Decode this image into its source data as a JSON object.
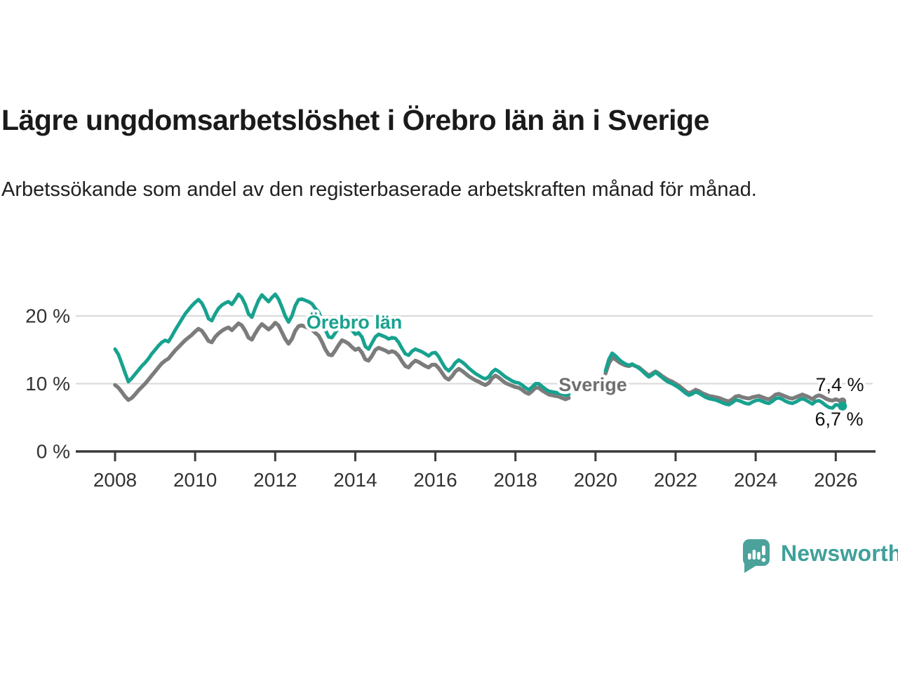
{
  "header": {
    "title": "Lägre ungdomsarbetslöshet i Örebro län än i Sverige",
    "subtitle": "Arbetssökande som andel av den registerbaserade arbetskraften månad för månad."
  },
  "footer": {
    "brand": "Newsworthy",
    "brand_color": "#40a09a"
  },
  "chart_data": {
    "type": "line",
    "title": "Lägre ungdomsarbetslöshet i Örebro län än i Sverige",
    "subtitle": "Arbetssökande som andel av den registerbaserade arbetskraften månad för månad.",
    "unit": "%",
    "frequency": "monthly",
    "x_start": "2008-01",
    "x_end": "2026-03",
    "data_gap": "2019-06 to 2020-03",
    "ylim": [
      0,
      24.5
    ],
    "yticks": [
      {
        "value": 0,
        "label": "0 %"
      },
      {
        "value": 10,
        "label": "10 %"
      },
      {
        "value": 20,
        "label": "20 %"
      }
    ],
    "xticks": [
      2008,
      2010,
      2012,
      2014,
      2016,
      2018,
      2020,
      2022,
      2024,
      2026
    ],
    "grid": "horizontal-only",
    "legend_position": "inline-labels",
    "series": [
      {
        "name": "Sverige",
        "color": "#7c7c7c",
        "end_label": "7,4 %",
        "values": [
          9.8,
          9.4,
          8.8,
          8.1,
          7.6,
          7.9,
          8.4,
          9.0,
          9.5,
          10.0,
          10.6,
          11.2,
          11.8,
          12.4,
          13.0,
          13.4,
          13.7,
          14.3,
          14.9,
          15.4,
          15.9,
          16.4,
          16.8,
          17.2,
          17.7,
          18.1,
          17.8,
          17.1,
          16.3,
          16.1,
          16.9,
          17.4,
          17.8,
          18.1,
          18.3,
          17.9,
          18.4,
          18.9,
          18.6,
          17.8,
          16.8,
          16.5,
          17.4,
          18.2,
          18.8,
          18.4,
          18.0,
          18.4,
          19.0,
          18.6,
          17.6,
          16.6,
          15.9,
          16.6,
          17.8,
          18.5,
          18.6,
          18.4,
          18.2,
          18.0,
          17.5,
          17.1,
          16.2,
          15.1,
          14.3,
          14.2,
          14.9,
          15.7,
          16.4,
          16.2,
          15.9,
          15.4,
          15.0,
          15.2,
          14.6,
          13.6,
          13.4,
          14.1,
          15.0,
          15.3,
          15.1,
          14.9,
          14.6,
          14.8,
          14.6,
          14.1,
          13.3,
          12.6,
          12.4,
          13.0,
          13.4,
          13.2,
          12.9,
          12.6,
          12.4,
          12.8,
          12.8,
          12.3,
          11.6,
          10.9,
          10.6,
          11.1,
          11.8,
          12.2,
          11.9,
          11.5,
          11.1,
          10.8,
          10.5,
          10.3,
          10.0,
          9.8,
          10.1,
          10.8,
          11.2,
          10.9,
          10.5,
          10.1,
          9.9,
          9.7,
          9.5,
          9.4,
          9.1,
          8.7,
          8.5,
          8.9,
          9.4,
          9.4,
          9.0,
          8.7,
          8.4,
          8.3,
          8.2,
          8.1,
          7.9,
          7.7,
          7.9,
          null,
          null,
          null,
          null,
          null,
          null,
          null,
          null,
          null,
          null,
          11.5,
          13.0,
          13.8,
          13.6,
          13.2,
          12.9,
          12.7,
          12.6,
          12.8,
          12.6,
          12.4,
          12.0,
          11.6,
          11.2,
          11.5,
          11.8,
          11.5,
          11.1,
          10.8,
          10.5,
          10.3,
          10.0,
          9.7,
          9.3,
          8.9,
          8.6,
          8.8,
          9.1,
          8.9,
          8.6,
          8.4,
          8.2,
          8.1,
          8.0,
          7.9,
          7.7,
          7.5,
          7.4,
          7.7,
          8.1,
          8.2,
          8.0,
          7.9,
          7.8,
          8.0,
          8.1,
          8.2,
          8.0,
          7.8,
          7.7,
          8.0,
          8.4,
          8.5,
          8.3,
          8.1,
          7.9,
          7.8,
          8.0,
          8.2,
          8.4,
          8.2,
          8.0,
          7.7,
          8.1,
          8.3,
          8.1,
          7.8,
          7.6,
          7.5,
          7.7,
          7.5,
          7.4
        ]
      },
      {
        "name": "Örebro län",
        "color": "#17a28f",
        "end_label": "6,7 %",
        "values": [
          15.1,
          14.3,
          13.0,
          11.6,
          10.3,
          10.8,
          11.4,
          12.0,
          12.6,
          13.1,
          13.7,
          14.4,
          15.0,
          15.6,
          16.1,
          16.4,
          16.2,
          17.0,
          17.9,
          18.7,
          19.5,
          20.3,
          20.9,
          21.5,
          22.0,
          22.4,
          21.9,
          20.9,
          19.6,
          19.3,
          20.3,
          21.1,
          21.6,
          21.9,
          22.1,
          21.7,
          22.4,
          23.2,
          22.7,
          21.7,
          20.3,
          19.8,
          21.1,
          22.3,
          23.1,
          22.6,
          22.1,
          22.7,
          23.2,
          22.5,
          21.3,
          20.0,
          19.1,
          20.0,
          21.5,
          22.4,
          22.5,
          22.3,
          22.1,
          21.8,
          21.1,
          20.6,
          19.4,
          18.0,
          16.9,
          16.8,
          17.5,
          18.3,
          19.2,
          19.0,
          18.6,
          17.9,
          17.3,
          17.5,
          16.9,
          15.5,
          15.1,
          16.0,
          16.9,
          17.3,
          17.1,
          16.9,
          16.6,
          16.8,
          16.7,
          16.1,
          15.2,
          14.4,
          14.2,
          14.8,
          15.1,
          14.9,
          14.7,
          14.4,
          14.1,
          14.5,
          14.6,
          14.0,
          13.1,
          12.3,
          11.9,
          12.4,
          13.1,
          13.5,
          13.2,
          12.8,
          12.3,
          11.9,
          11.5,
          11.2,
          10.9,
          10.7,
          11.0,
          11.7,
          12.1,
          11.8,
          11.4,
          11.0,
          10.7,
          10.4,
          10.2,
          10.1,
          9.8,
          9.4,
          9.1,
          9.5,
          10.0,
          10.0,
          9.6,
          9.2,
          8.9,
          8.8,
          8.7,
          8.6,
          8.5,
          8.3,
          8.4,
          null,
          null,
          null,
          null,
          null,
          null,
          null,
          null,
          null,
          null,
          11.9,
          13.6,
          14.5,
          14.1,
          13.6,
          13.2,
          12.9,
          12.7,
          12.9,
          12.6,
          12.3,
          11.9,
          11.4,
          11.0,
          11.3,
          11.7,
          11.3,
          10.9,
          10.5,
          10.2,
          10.0,
          9.7,
          9.4,
          9.0,
          8.6,
          8.3,
          8.5,
          8.8,
          8.6,
          8.3,
          8.0,
          7.8,
          7.7,
          7.6,
          7.4,
          7.2,
          7.0,
          6.9,
          7.2,
          7.6,
          7.5,
          7.3,
          7.1,
          7.0,
          7.3,
          7.5,
          7.6,
          7.4,
          7.2,
          7.1,
          7.4,
          7.8,
          7.9,
          7.7,
          7.4,
          7.2,
          7.1,
          7.3,
          7.6,
          7.8,
          7.6,
          7.3,
          7.0,
          7.4,
          7.5,
          7.2,
          6.8,
          6.5,
          6.4,
          6.9,
          6.8,
          6.7
        ]
      }
    ]
  },
  "icons": {
    "logo": "newsworthy-speech-bubble-bar-chart"
  }
}
